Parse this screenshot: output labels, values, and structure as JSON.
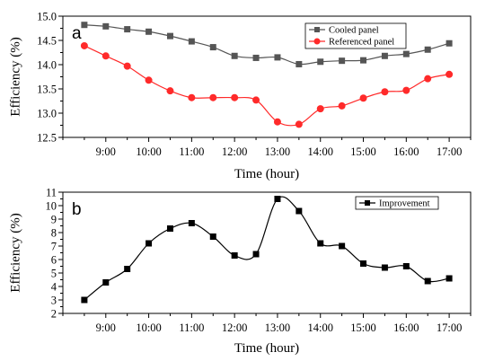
{
  "chart_data": [
    {
      "type": "line",
      "panel_label": "a",
      "x": [
        "8:30",
        "9:00",
        "9:30",
        "10:00",
        "10:30",
        "11:00",
        "11:30",
        "12:00",
        "12:30",
        "13:00",
        "13:30",
        "14:00",
        "14:30",
        "15:00",
        "15:30",
        "16:00",
        "16:30",
        "17:00"
      ],
      "series": [
        {
          "name": "Cooled panel",
          "color": "#555555",
          "marker": "square",
          "values": [
            14.82,
            14.79,
            14.73,
            14.68,
            14.59,
            14.48,
            14.36,
            14.18,
            14.14,
            14.15,
            14.01,
            14.06,
            14.08,
            14.09,
            14.18,
            14.22,
            14.31,
            14.44
          ]
        },
        {
          "name": "Referenced panel",
          "color": "#ff2a2a",
          "marker": "circle",
          "values": [
            14.39,
            14.18,
            13.97,
            13.68,
            13.46,
            13.32,
            13.32,
            13.32,
            13.27,
            12.82,
            12.77,
            13.09,
            13.15,
            13.31,
            13.44,
            13.47,
            13.71,
            13.8
          ]
        }
      ],
      "xlabel": "Time (hour)",
      "ylabel": "Efficiency (%)",
      "xticks": [
        "9:00",
        "10:00",
        "11:00",
        "12:00",
        "13:00",
        "14:00",
        "15:00",
        "16:00",
        "17:00"
      ],
      "yticks": [
        "12.5",
        "13.0",
        "13.5",
        "14.0",
        "14.5",
        "15.0"
      ],
      "ylim": [
        12.5,
        15.0
      ],
      "grid": false,
      "legend_position": "top-right"
    },
    {
      "type": "line",
      "panel_label": "b",
      "x": [
        "8:30",
        "9:00",
        "9:30",
        "10:00",
        "10:30",
        "11:00",
        "11:30",
        "12:00",
        "12:30",
        "13:00",
        "13:30",
        "14:00",
        "14:30",
        "15:00",
        "15:30",
        "16:00",
        "16:30",
        "17:00"
      ],
      "series": [
        {
          "name": "Improvement",
          "color": "#000000",
          "marker": "square",
          "values": [
            3.0,
            4.3,
            5.3,
            7.2,
            8.3,
            8.7,
            7.7,
            6.3,
            6.4,
            10.5,
            9.6,
            7.2,
            7.0,
            5.7,
            5.4,
            5.5,
            4.4,
            4.6
          ]
        }
      ],
      "xlabel": "Time (hour)",
      "ylabel": "Efficiency (%)",
      "xticks": [
        "9:00",
        "10:00",
        "11:00",
        "12:00",
        "13:00",
        "14:00",
        "15:00",
        "16:00",
        "17:00"
      ],
      "yticks": [
        "2",
        "3",
        "4",
        "5",
        "6",
        "7",
        "8",
        "9",
        "10",
        "11"
      ],
      "ylim": [
        2,
        11
      ],
      "grid": false,
      "legend_position": "top-right"
    }
  ]
}
